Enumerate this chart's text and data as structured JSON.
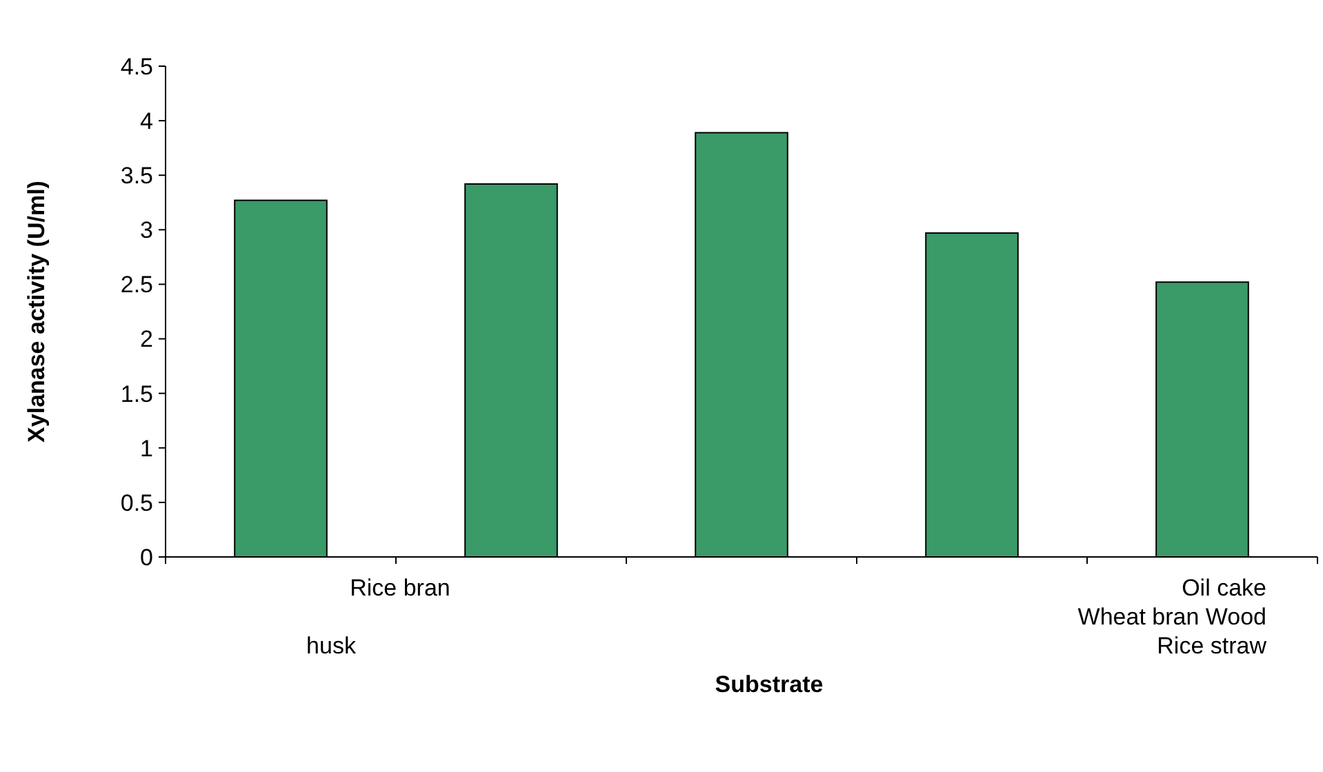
{
  "chart_data": {
    "type": "bar",
    "xlabel": "Substrate",
    "ylabel": "Xylanase activity (U/ml)",
    "categories": [
      null,
      null,
      null,
      null,
      null
    ],
    "values": [
      3.27,
      3.42,
      3.89,
      2.97,
      2.52
    ],
    "color": "#3a9a68",
    "ylim": [
      0,
      4.5
    ],
    "yticks": [
      0,
      0.5,
      1,
      1.5,
      2,
      2.5,
      3,
      3.5,
      4,
      4.5
    ],
    "grid": false,
    "annotations": [
      "Rice bran",
      "husk",
      "Oil cake",
      "Wheat bran Wood",
      "Rice straw"
    ]
  }
}
